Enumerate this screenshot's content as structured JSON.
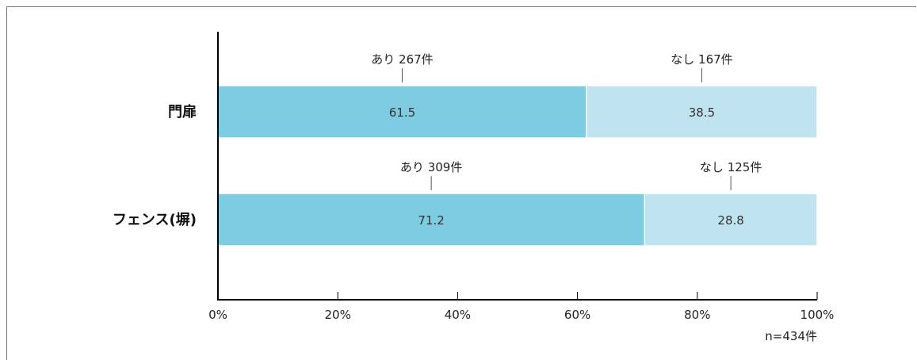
{
  "chart_data": {
    "type": "bar",
    "orientation": "horizontal",
    "stacked": true,
    "categories": [
      "門扉",
      "フェンス(塀)"
    ],
    "series": [
      {
        "name": "あり",
        "values": [
          61.5,
          71.2
        ],
        "counts": [
          "あり 267件",
          "あり 309件"
        ],
        "color": "#7ecce2"
      },
      {
        "name": "なし",
        "values": [
          38.5,
          28.8
        ],
        "counts": [
          "なし 167件",
          "なし 125件"
        ],
        "color": "#bfe4ef"
      }
    ],
    "x_ticks": [
      "0%",
      "20%",
      "40%",
      "60%",
      "80%",
      "100%"
    ],
    "xlim": [
      0,
      100
    ],
    "note": "n=434件",
    "grid": false
  }
}
